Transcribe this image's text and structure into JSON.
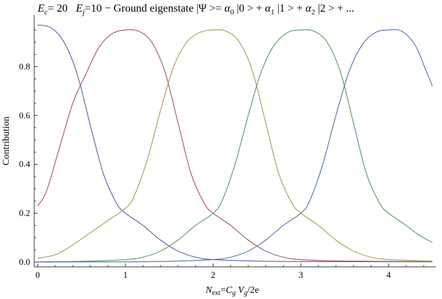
{
  "chart_data": {
    "type": "line",
    "title_parts": {
      "ec_label": "E",
      "ec_sub": "c",
      "ec_value": "= 20",
      "ej_label": "E",
      "ej_sub": "j",
      "ej_value": "=10",
      "rest_a": " − Ground eigenstate |Ψ >= ",
      "alpha0": "α",
      "alpha0_sub": "0",
      "ket0": " |0 > + ",
      "alpha1": "α",
      "alpha1_sub": "1",
      "ket1": " |1 > + ",
      "alpha2": "α",
      "alpha2_sub": "2",
      "ket2": " |2 > + ..."
    },
    "xlabel_parts": {
      "n": "N",
      "n_sub": "ext",
      "eq": "=",
      "c": "C",
      "c_sub": "g",
      "v": " V",
      "v_sub": "g",
      "rest": "/2e"
    },
    "ylabel": "Contribution",
    "xlim": [
      0,
      4.5
    ],
    "ylim": [
      0,
      1.0
    ],
    "x_ticks": [
      0,
      1,
      2,
      3,
      4
    ],
    "x_tick_labels": [
      "0",
      "1",
      "2",
      "3",
      "4"
    ],
    "y_ticks": [
      0.0,
      0.2,
      0.4,
      0.6,
      0.8
    ],
    "y_tick_labels": [
      "0.0",
      "0.2",
      "0.4",
      "0.6",
      "0.8"
    ],
    "series": [
      {
        "color": "#5b5ba6",
        "points": [
          [
            0,
            0.97
          ],
          [
            0.15,
            0.96
          ],
          [
            0.3,
            0.9
          ],
          [
            0.45,
            0.77
          ],
          [
            0.6,
            0.56
          ],
          [
            0.75,
            0.36
          ],
          [
            0.9,
            0.24
          ],
          [
            1.0,
            0.2
          ],
          [
            1.2,
            0.15
          ],
          [
            1.4,
            0.09
          ],
          [
            1.6,
            0.045
          ],
          [
            1.8,
            0.02
          ],
          [
            2.0,
            0.01
          ],
          [
            2.5,
            0.004
          ],
          [
            3.0,
            0.002
          ],
          [
            4.5,
            0.001
          ]
        ]
      },
      {
        "color": "#a04c7a",
        "points": [
          [
            0,
            0.23
          ],
          [
            0.1,
            0.29
          ],
          [
            0.25,
            0.47
          ],
          [
            0.4,
            0.65
          ],
          [
            0.55,
            0.77
          ],
          [
            0.7,
            0.88
          ],
          [
            0.85,
            0.935
          ],
          [
            1.0,
            0.95
          ],
          [
            1.15,
            0.945
          ],
          [
            1.3,
            0.9
          ],
          [
            1.45,
            0.78
          ],
          [
            1.6,
            0.57
          ],
          [
            1.75,
            0.36
          ],
          [
            1.9,
            0.24
          ],
          [
            2.0,
            0.2
          ],
          [
            2.2,
            0.15
          ],
          [
            2.4,
            0.09
          ],
          [
            2.6,
            0.045
          ],
          [
            2.8,
            0.02
          ],
          [
            3.0,
            0.01
          ],
          [
            3.5,
            0.004
          ],
          [
            4.5,
            0.002
          ]
        ]
      },
      {
        "color": "#a39a55",
        "points": [
          [
            0,
            0.015
          ],
          [
            0.2,
            0.03
          ],
          [
            0.4,
            0.07
          ],
          [
            0.6,
            0.12
          ],
          [
            0.8,
            0.17
          ],
          [
            1.0,
            0.22
          ],
          [
            1.1,
            0.27
          ],
          [
            1.25,
            0.42
          ],
          [
            1.4,
            0.62
          ],
          [
            1.55,
            0.8
          ],
          [
            1.7,
            0.9
          ],
          [
            1.85,
            0.94
          ],
          [
            2.0,
            0.95
          ],
          [
            2.15,
            0.945
          ],
          [
            2.3,
            0.9
          ],
          [
            2.45,
            0.78
          ],
          [
            2.6,
            0.57
          ],
          [
            2.75,
            0.36
          ],
          [
            2.9,
            0.24
          ],
          [
            3.0,
            0.2
          ],
          [
            3.2,
            0.15
          ],
          [
            3.4,
            0.09
          ],
          [
            3.6,
            0.045
          ],
          [
            3.8,
            0.02
          ],
          [
            4.0,
            0.01
          ],
          [
            4.5,
            0.004
          ]
        ]
      },
      {
        "color": "#4f9a5a",
        "points": [
          [
            0,
            0.001
          ],
          [
            0.5,
            0.003
          ],
          [
            1.0,
            0.01
          ],
          [
            1.2,
            0.02
          ],
          [
            1.4,
            0.045
          ],
          [
            1.6,
            0.09
          ],
          [
            1.8,
            0.15
          ],
          [
            2.0,
            0.2
          ],
          [
            2.1,
            0.25
          ],
          [
            2.25,
            0.4
          ],
          [
            2.4,
            0.6
          ],
          [
            2.55,
            0.78
          ],
          [
            2.7,
            0.89
          ],
          [
            2.85,
            0.94
          ],
          [
            3.0,
            0.95
          ],
          [
            3.15,
            0.945
          ],
          [
            3.3,
            0.9
          ],
          [
            3.45,
            0.78
          ],
          [
            3.6,
            0.57
          ],
          [
            3.75,
            0.36
          ],
          [
            3.9,
            0.24
          ],
          [
            4.0,
            0.2
          ],
          [
            4.2,
            0.15
          ],
          [
            4.35,
            0.11
          ],
          [
            4.5,
            0.08
          ]
        ]
      },
      {
        "color": "#4b6fa8",
        "points": [
          [
            0,
            0.0
          ],
          [
            1.0,
            0.001
          ],
          [
            1.5,
            0.003
          ],
          [
            2.0,
            0.01
          ],
          [
            2.2,
            0.02
          ],
          [
            2.4,
            0.045
          ],
          [
            2.6,
            0.09
          ],
          [
            2.8,
            0.15
          ],
          [
            3.0,
            0.2
          ],
          [
            3.1,
            0.25
          ],
          [
            3.25,
            0.4
          ],
          [
            3.4,
            0.6
          ],
          [
            3.55,
            0.78
          ],
          [
            3.7,
            0.89
          ],
          [
            3.85,
            0.94
          ],
          [
            4.0,
            0.95
          ],
          [
            4.15,
            0.945
          ],
          [
            4.3,
            0.89
          ],
          [
            4.42,
            0.79
          ],
          [
            4.5,
            0.72
          ]
        ]
      }
    ],
    "grid": false,
    "legend": "none"
  }
}
